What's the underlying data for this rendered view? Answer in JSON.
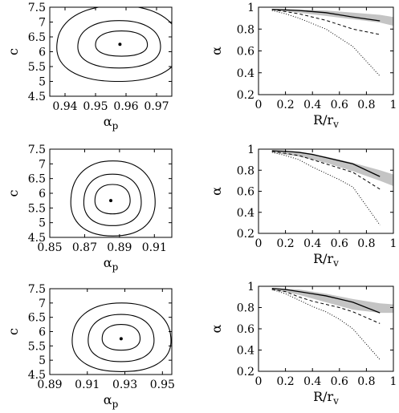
{
  "chart_data": [
    {
      "type": "contour",
      "panel": "row1-left",
      "xlabel": "α_p",
      "ylabel": "c",
      "xlim": [
        0.935,
        0.975
      ],
      "ylim": [
        4.5,
        7.5
      ],
      "xticks": [
        0.94,
        0.95,
        0.96,
        0.97
      ],
      "yticks": [
        4.5,
        5,
        5.5,
        6,
        6.5,
        7,
        7.5
      ],
      "best_fit": {
        "x": 0.958,
        "y": 6.25
      },
      "contours": [
        {
          "level": 1,
          "x_range": [
            0.9505,
            0.9665
          ],
          "y_range": [
            5.85,
            6.7
          ]
        },
        {
          "level": 2,
          "x_range": [
            0.945,
            0.9705
          ],
          "y_range": [
            5.45,
            7.05
          ]
        },
        {
          "level": 3,
          "x_range": [
            0.9385,
            0.9765
          ],
          "y_range": [
            5.0,
            7.55
          ]
        }
      ]
    },
    {
      "type": "line",
      "panel": "row1-right",
      "xlabel": "R/r_v",
      "ylabel": "α",
      "xlim": [
        0,
        1
      ],
      "ylim": [
        0.2,
        1
      ],
      "xticks": [
        0,
        0.2,
        0.4,
        0.6,
        0.8,
        1
      ],
      "yticks": [
        0.2,
        0.4,
        0.6,
        0.8,
        1
      ],
      "band": {
        "x": [
          0.1,
          0.3,
          0.5,
          0.7,
          0.9,
          1.0
        ],
        "lower": [
          0.97,
          0.95,
          0.92,
          0.89,
          0.86,
          0.83
        ],
        "upper": [
          0.985,
          0.98,
          0.97,
          0.95,
          0.93,
          0.91
        ]
      },
      "series": [
        {
          "style": "solid",
          "x": [
            0.1,
            0.2,
            0.3,
            0.4,
            0.5,
            0.6,
            0.7,
            0.9
          ],
          "y": [
            0.98,
            0.975,
            0.97,
            0.96,
            0.95,
            0.93,
            0.91,
            0.875
          ]
        },
        {
          "style": "dashed",
          "x": [
            0.1,
            0.2,
            0.3,
            0.4,
            0.5,
            0.6,
            0.7,
            0.9
          ],
          "y": [
            0.98,
            0.96,
            0.94,
            0.91,
            0.88,
            0.84,
            0.8,
            0.75
          ]
        },
        {
          "style": "dotted",
          "x": [
            0.1,
            0.2,
            0.3,
            0.4,
            0.5,
            0.6,
            0.7,
            0.9
          ],
          "y": [
            0.97,
            0.94,
            0.9,
            0.85,
            0.8,
            0.72,
            0.64,
            0.37
          ]
        }
      ]
    },
    {
      "type": "contour",
      "panel": "row2-left",
      "xlabel": "α_p",
      "ylabel": "c",
      "xlim": [
        0.85,
        0.92
      ],
      "ylim": [
        4.5,
        7.5
      ],
      "xticks": [
        0.85,
        0.87,
        0.89,
        0.91
      ],
      "yticks": [
        4.5,
        5,
        5.5,
        6,
        6.5,
        7,
        7.5
      ],
      "best_fit": {
        "x": 0.885,
        "y": 5.75
      },
      "contours": [
        {
          "level": 1,
          "x_range": [
            0.8765,
            0.8955
          ],
          "y_range": [
            5.3,
            6.3
          ]
        },
        {
          "level": 2,
          "x_range": [
            0.8705,
            0.9015
          ],
          "y_range": [
            4.9,
            6.65
          ]
        },
        {
          "level": 3,
          "x_range": [
            0.8635,
            0.909
          ],
          "y_range": [
            4.55,
            7.1
          ]
        }
      ]
    },
    {
      "type": "line",
      "panel": "row2-right",
      "xlabel": "R/r_v",
      "ylabel": "α",
      "xlim": [
        0,
        1
      ],
      "ylim": [
        0.2,
        1
      ],
      "xticks": [
        0,
        0.2,
        0.4,
        0.6,
        0.8,
        1
      ],
      "yticks": [
        0.2,
        0.4,
        0.6,
        0.8,
        1
      ],
      "band": {
        "x": [
          0.1,
          0.3,
          0.5,
          0.7,
          0.9,
          1.0
        ],
        "lower": [
          0.97,
          0.93,
          0.87,
          0.79,
          0.7,
          0.65
        ],
        "upper": [
          0.985,
          0.97,
          0.93,
          0.87,
          0.8,
          0.76
        ]
      },
      "series": [
        {
          "style": "solid",
          "x": [
            0.1,
            0.2,
            0.3,
            0.4,
            0.5,
            0.6,
            0.7,
            0.9
          ],
          "y": [
            0.985,
            0.98,
            0.97,
            0.95,
            0.92,
            0.89,
            0.86,
            0.74
          ]
        },
        {
          "style": "dashed",
          "x": [
            0.1,
            0.2,
            0.3,
            0.4,
            0.5,
            0.6,
            0.7,
            0.9
          ],
          "y": [
            0.98,
            0.96,
            0.94,
            0.9,
            0.86,
            0.82,
            0.78,
            0.62
          ]
        },
        {
          "style": "dotted",
          "x": [
            0.1,
            0.2,
            0.3,
            0.4,
            0.5,
            0.6,
            0.7,
            0.9
          ],
          "y": [
            0.97,
            0.94,
            0.9,
            0.83,
            0.77,
            0.71,
            0.64,
            0.28
          ]
        }
      ]
    },
    {
      "type": "contour",
      "panel": "row3-left",
      "xlabel": "α_p",
      "ylabel": "c",
      "xlim": [
        0.89,
        0.955
      ],
      "ylim": [
        4.5,
        7.5
      ],
      "xticks": [
        0.89,
        0.91,
        0.93,
        0.95
      ],
      "yticks": [
        4.5,
        5,
        5.5,
        6,
        6.5,
        7,
        7.5
      ],
      "best_fit": {
        "x": 0.928,
        "y": 5.75
      },
      "contours": [
        {
          "level": 1,
          "x_range": [
            0.9185,
            0.9375
          ],
          "y_range": [
            5.35,
            6.25
          ]
        },
        {
          "level": 2,
          "x_range": [
            0.9115,
            0.9445
          ],
          "y_range": [
            4.95,
            6.6
          ]
        },
        {
          "level": 3,
          "x_range": [
            0.9035,
            0.953
          ],
          "y_range": [
            4.6,
            7.0
          ]
        }
      ]
    },
    {
      "type": "line",
      "panel": "row3-right",
      "xlabel": "R/r_v",
      "ylabel": "α",
      "xlim": [
        0,
        1
      ],
      "ylim": [
        0.2,
        1
      ],
      "xticks": [
        0,
        0.2,
        0.4,
        0.6,
        0.8,
        1
      ],
      "yticks": [
        0.2,
        0.4,
        0.6,
        0.8,
        1
      ],
      "band": {
        "x": [
          0.1,
          0.3,
          0.5,
          0.7,
          0.9,
          1.0
        ],
        "lower": [
          0.97,
          0.92,
          0.85,
          0.78,
          0.75,
          0.75
        ],
        "upper": [
          0.985,
          0.97,
          0.93,
          0.88,
          0.84,
          0.83
        ]
      },
      "series": [
        {
          "style": "solid",
          "x": [
            0.1,
            0.2,
            0.3,
            0.4,
            0.5,
            0.6,
            0.7,
            0.9
          ],
          "y": [
            0.98,
            0.97,
            0.95,
            0.93,
            0.91,
            0.88,
            0.85,
            0.75
          ]
        },
        {
          "style": "dashed",
          "x": [
            0.1,
            0.2,
            0.3,
            0.4,
            0.5,
            0.6,
            0.7,
            0.9
          ],
          "y": [
            0.97,
            0.95,
            0.9,
            0.86,
            0.83,
            0.8,
            0.76,
            0.65
          ]
        },
        {
          "style": "dotted",
          "x": [
            0.1,
            0.2,
            0.3,
            0.4,
            0.5,
            0.6,
            0.7,
            0.9
          ],
          "y": [
            0.97,
            0.93,
            0.87,
            0.81,
            0.76,
            0.69,
            0.6,
            0.31
          ]
        }
      ]
    }
  ]
}
